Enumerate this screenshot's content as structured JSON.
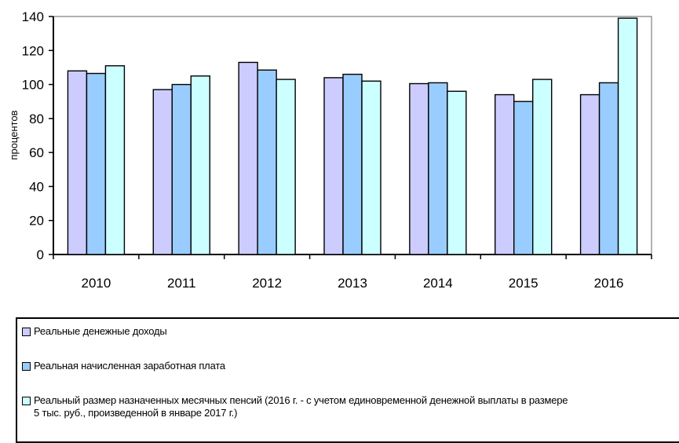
{
  "chart_data": {
    "type": "bar",
    "categories": [
      "2010",
      "2011",
      "2012",
      "2013",
      "2014",
      "2015",
      "2016"
    ],
    "series": [
      {
        "name": "Реальные денежные доходы",
        "color": "#ccccff",
        "values": [
          108,
          97,
          113,
          104,
          100.5,
          94,
          94
        ]
      },
      {
        "name": "Реальная начисленная заработная плата",
        "color": "#99ccff",
        "values": [
          106.5,
          100,
          108.5,
          106,
          101,
          90,
          101
        ]
      },
      {
        "name": "Реальный размер назначенных месячных пенсий (2016 г. - с учетом единовременной денежной выплаты в размере\n5 тыс. руб., произведенной в январе 2017 г.)",
        "color": "#ccffff",
        "values": [
          111,
          105,
          103,
          102,
          96,
          103,
          139
        ]
      }
    ],
    "ylabel": "процентов",
    "xlabel": "",
    "ylim": [
      0,
      140
    ],
    "yticks": [
      "0",
      "20",
      "40",
      "60",
      "80",
      "100",
      "120",
      "140"
    ],
    "grid": false,
    "legend_position": "bottom"
  }
}
